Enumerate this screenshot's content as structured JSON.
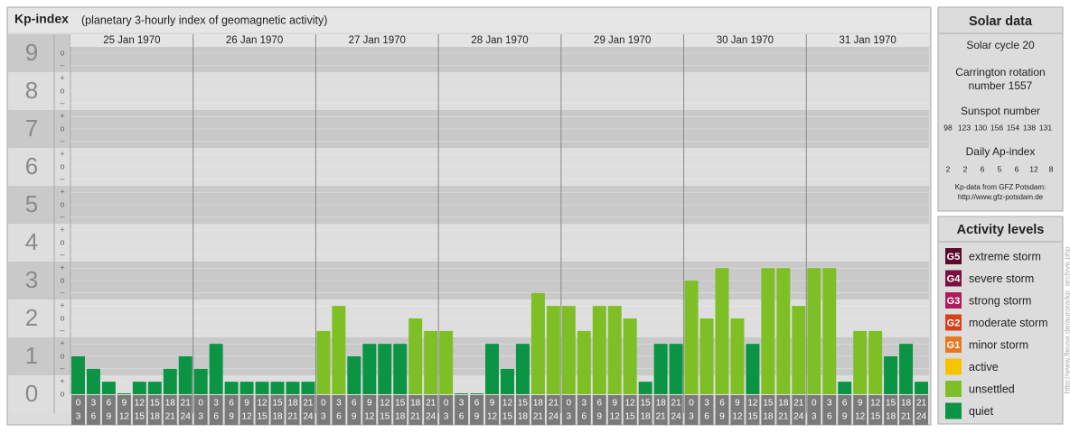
{
  "header": {
    "title": "Kp-index",
    "subtitle": "(planetary 3-hourly index of geomagnetic activity)"
  },
  "chart_data": {
    "type": "bar",
    "categories": [
      "25 Jan 1970",
      "26 Jan 1970",
      "27 Jan 1970",
      "28 Jan 1970",
      "29 Jan 1970",
      "30 Jan 1970",
      "31 Jan 1970"
    ],
    "hours": [
      [
        "0",
        "3"
      ],
      [
        "3",
        "6"
      ],
      [
        "6",
        "9"
      ],
      [
        "9",
        "12"
      ],
      [
        "12",
        "15"
      ],
      [
        "15",
        "18"
      ],
      [
        "18",
        "21"
      ],
      [
        "21",
        "24"
      ]
    ],
    "values": [
      [
        1,
        0.67,
        0.33,
        0,
        0.33,
        0.33,
        0.67,
        1
      ],
      [
        0.67,
        1.33,
        0.33,
        0.33,
        0.33,
        0.33,
        0.33,
        0.33
      ],
      [
        1.67,
        2.33,
        1,
        1.33,
        1.33,
        1.33,
        2,
        1.67
      ],
      [
        1.67,
        0,
        0,
        1.33,
        0.67,
        1.33,
        2.67,
        2.33
      ],
      [
        2.33,
        1.67,
        2.33,
        2.33,
        2,
        0.33,
        1.33,
        1.33
      ],
      [
        3,
        2,
        3.33,
        2,
        1.33,
        3.33,
        3.33,
        2.33
      ],
      [
        3.33,
        3.33,
        0.33,
        1.67,
        1.67,
        1,
        1.33,
        0.33
      ]
    ],
    "colors": [
      [
        "#0b9444",
        "#0b9444",
        "#0b9444",
        "#0b9444",
        "#0b9444",
        "#0b9444",
        "#0b9444",
        "#0b9444"
      ],
      [
        "#0b9444",
        "#0b9444",
        "#0b9444",
        "#0b9444",
        "#0b9444",
        "#0b9444",
        "#0b9444",
        "#0b9444"
      ],
      [
        "#7fbf26",
        "#7fbf26",
        "#0b9444",
        "#0b9444",
        "#0b9444",
        "#0b9444",
        "#7fbf26",
        "#7fbf26"
      ],
      [
        "#7fbf26",
        "#0b9444",
        "#0b9444",
        "#0b9444",
        "#0b9444",
        "#0b9444",
        "#7fbf26",
        "#7fbf26"
      ],
      [
        "#7fbf26",
        "#7fbf26",
        "#7fbf26",
        "#7fbf26",
        "#7fbf26",
        "#0b9444",
        "#0b9444",
        "#0b9444"
      ],
      [
        "#7fbf26",
        "#7fbf26",
        "#7fbf26",
        "#7fbf26",
        "#0b9444",
        "#7fbf26",
        "#7fbf26",
        "#7fbf26"
      ],
      [
        "#7fbf26",
        "#7fbf26",
        "#0b9444",
        "#7fbf26",
        "#7fbf26",
        "#0b9444",
        "#0b9444",
        "#0b9444"
      ]
    ],
    "ylim": [
      -0.5,
      9.5
    ],
    "yticks": [
      0,
      1,
      2,
      3,
      4,
      5,
      6,
      7,
      8,
      9
    ],
    "minor_yticks": [
      {
        "value": 0,
        "label": "o"
      },
      {
        "value": 0.33,
        "label": "+"
      },
      {
        "value": 0.67,
        "label": "–"
      },
      {
        "value": 1,
        "label": "o"
      },
      {
        "value": 1.33,
        "label": "+"
      },
      {
        "value": 1.67,
        "label": "–"
      },
      {
        "value": 2,
        "label": "o"
      },
      {
        "value": 2.33,
        "label": "+"
      },
      {
        "value": 2.67,
        "label": "–"
      },
      {
        "value": 3,
        "label": "o"
      },
      {
        "value": 3.33,
        "label": "+"
      },
      {
        "value": 3.67,
        "label": "–"
      },
      {
        "value": 4,
        "label": "o"
      },
      {
        "value": 4.33,
        "label": "+"
      },
      {
        "value": 4.67,
        "label": "–"
      },
      {
        "value": 5,
        "label": "o"
      },
      {
        "value": 5.33,
        "label": "+"
      },
      {
        "value": 5.67,
        "label": "–"
      },
      {
        "value": 6,
        "label": "o"
      },
      {
        "value": 6.33,
        "label": "+"
      },
      {
        "value": 6.67,
        "label": "–"
      },
      {
        "value": 7,
        "label": "o"
      },
      {
        "value": 7.33,
        "label": "+"
      },
      {
        "value": 7.67,
        "label": "–"
      },
      {
        "value": 8,
        "label": "o"
      },
      {
        "value": 8.33,
        "label": "+"
      },
      {
        "value": 8.67,
        "label": "–"
      },
      {
        "value": 9,
        "label": "o"
      }
    ],
    "grid": true
  },
  "solar": {
    "title": "Solar data",
    "cycle": "Solar cycle 20",
    "carrington": [
      "Carrington rotation",
      "number 1557"
    ],
    "sunspot_title": "Sunspot number",
    "sunspots": [
      98,
      123,
      130,
      156,
      154,
      138,
      131
    ],
    "ap_title": "Daily Ap-index",
    "ap": [
      2,
      2,
      6,
      5,
      6,
      12,
      8
    ],
    "source": [
      "Kp-data from GFZ Potsdam:",
      "http://www.gfz-potsdam.de"
    ]
  },
  "legend": {
    "title": "Activity levels",
    "items": [
      {
        "badge": "G5",
        "label": "extreme storm",
        "color": "#5a0a2a"
      },
      {
        "badge": "G4",
        "label": "severe storm",
        "color": "#7a1040"
      },
      {
        "badge": "G3",
        "label": "strong storm",
        "color": "#b01a5a"
      },
      {
        "badge": "G2",
        "label": "moderate storm",
        "color": "#d8401a"
      },
      {
        "badge": "G1",
        "label": "minor storm",
        "color": "#e87820"
      },
      {
        "label": "active",
        "color": "#f5c400"
      },
      {
        "label": "unsettled",
        "color": "#7fbf26"
      },
      {
        "label": "quiet",
        "color": "#0b9444"
      }
    ]
  },
  "watermark": "http://www.fleuse.de/aurora/kp_archive.php"
}
